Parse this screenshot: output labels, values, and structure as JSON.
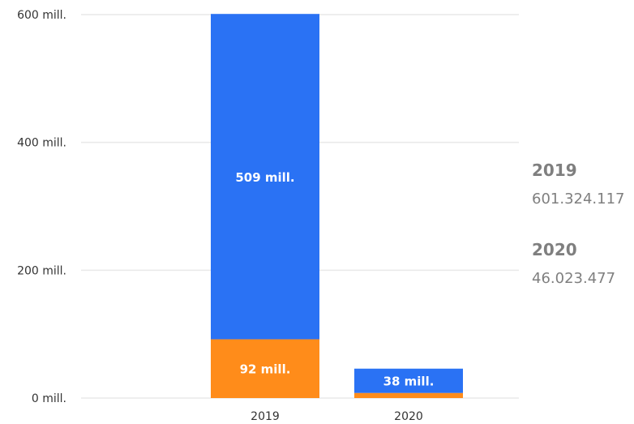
{
  "chart_data": {
    "type": "bar",
    "stacked": true,
    "categories": [
      "2019",
      "2020"
    ],
    "series": [
      {
        "values": [
          92,
          8
        ],
        "labels": [
          "92 mill.",
          ""
        ],
        "color": "#ff8c1a"
      },
      {
        "values": [
          509,
          38
        ],
        "labels": [
          "509 mill.",
          "38 mill."
        ],
        "color": "#2a72f4"
      }
    ],
    "y_ticks": [
      {
        "value": 0,
        "label": "0 mill."
      },
      {
        "value": 200,
        "label": "200 mill."
      },
      {
        "value": 400,
        "label": "400 mill."
      },
      {
        "value": 600,
        "label": "600 mill."
      }
    ],
    "ylim": [
      0,
      600
    ],
    "grid": true,
    "gridline_color": "#e9e9e9"
  },
  "side_panel": {
    "entries": [
      {
        "year": "2019",
        "value": "601.324.117"
      },
      {
        "year": "2020",
        "value": "46.023.477"
      }
    ]
  }
}
